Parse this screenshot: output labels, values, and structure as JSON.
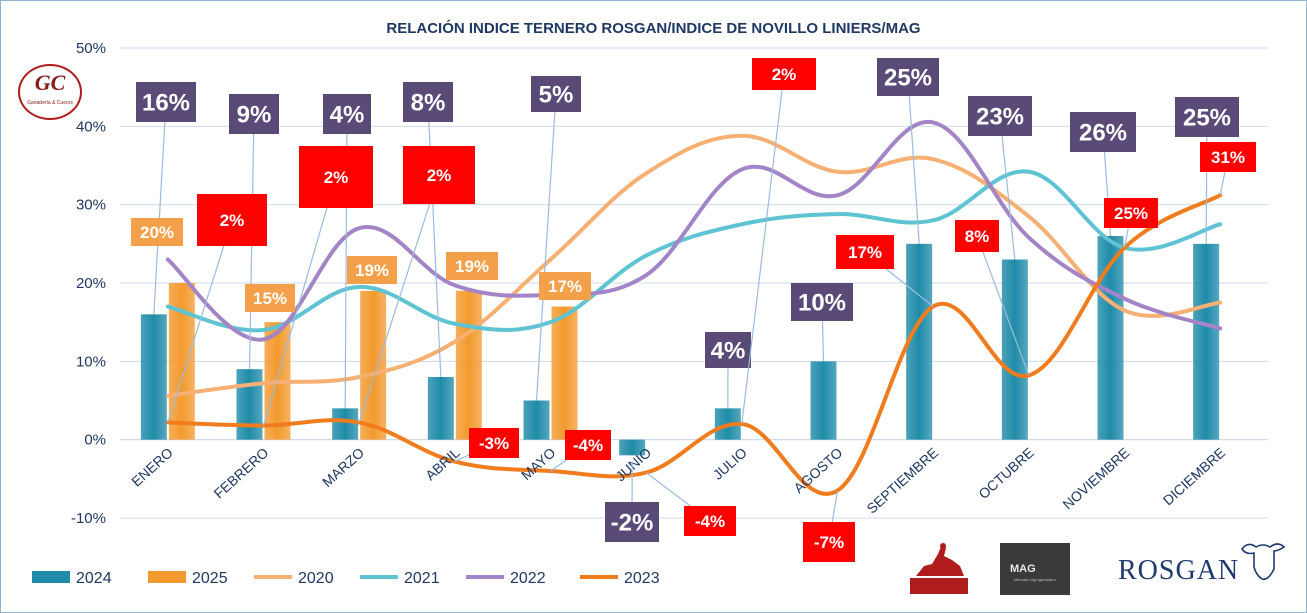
{
  "chart_data": {
    "type": "bar+line",
    "title": "RELACIÓN INDICE TERNERO ROSGAN/INDICE DE NOVILLO LINIERS/MAG",
    "categories": [
      "ENERO",
      "FEBRERO",
      "MARZO",
      "ABRIL",
      "MAYO",
      "JUNIO",
      "JULIO",
      "AGOSTO",
      "SEPTIEMBRE",
      "OCTUBRE",
      "NOVIEMBRE",
      "DICIEMBRE"
    ],
    "y_ticks": [
      "50%",
      "40%",
      "30%",
      "20%",
      "10%",
      "0%",
      "-10%"
    ],
    "ylim": [
      -10,
      50
    ],
    "grid": true,
    "legend_position": "bottom-left",
    "bar_series": [
      {
        "name": "2024",
        "color": "#1f8ba8",
        "values": [
          16,
          9,
          4,
          8,
          5,
          -2,
          4,
          10,
          25,
          23,
          26,
          25
        ],
        "labels": [
          "16%",
          "9%",
          "4%",
          "8%",
          "5%",
          "-2%",
          "4%",
          "10%",
          "25%",
          "23%",
          "26%",
          "25%"
        ]
      },
      {
        "name": "2025",
        "color": "#f39a2e",
        "values": [
          20,
          15,
          19,
          19,
          17,
          null,
          null,
          null,
          null,
          null,
          null,
          null
        ],
        "labels": [
          "20%",
          "15%",
          "19%",
          "19%",
          "17%",
          "",
          "",
          "",
          "",
          "",
          "",
          ""
        ]
      }
    ],
    "line_series": [
      {
        "name": "2020",
        "color": "#f6b073",
        "values": [
          5.6,
          7.2,
          8.0,
          12.5,
          23.0,
          34.0,
          38.8,
          34.2,
          35.8,
          28.5,
          16.5,
          17.5
        ]
      },
      {
        "name": "2021",
        "color": "#5ec3d2",
        "values": [
          17.0,
          14.0,
          19.5,
          14.8,
          15.0,
          23.5,
          27.5,
          28.8,
          28.0,
          34.2,
          24.5,
          27.5
        ]
      },
      {
        "name": "2022",
        "color": "#a384c6",
        "values": [
          23.0,
          12.8,
          27.0,
          19.7,
          18.5,
          21.0,
          34.5,
          31.2,
          40.5,
          25.8,
          18.0,
          14.2
        ]
      },
      {
        "name": "2023",
        "color": "#f07c1e",
        "values": [
          2.2,
          1.8,
          2.2,
          -2.8,
          -4.0,
          -4.2,
          2.0,
          -6.5,
          17.0,
          8.2,
          24.5,
          31.2
        ],
        "labels": [
          "2%",
          "2%",
          "2%",
          "-3%",
          "-4%",
          "-4%",
          "2%",
          "-7%",
          "17%",
          "8%",
          "25%",
          "31%"
        ]
      }
    ],
    "legend": [
      "2024",
      "2025",
      "2020",
      "2021",
      "2022",
      "2023"
    ]
  },
  "logos": {
    "gc_text": "GC",
    "gc_sub": "Ganadería & Cueros",
    "mag_text": "MAG",
    "mag_sub": "Mercado Agroganadero",
    "rosgan_text": "ROSGAN"
  }
}
